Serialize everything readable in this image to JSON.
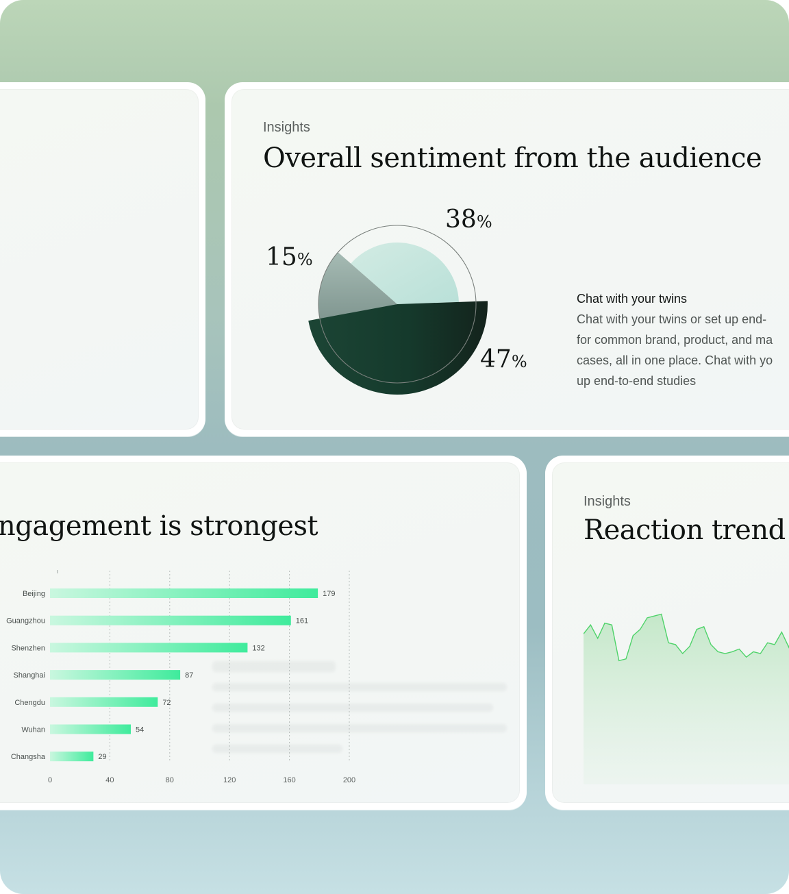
{
  "colors": {
    "accent_green": "#3fe89a",
    "dark_green": "#173b2f",
    "line_green": "#4fd36a"
  },
  "sentiment_card": {
    "eyebrow": "Insights",
    "title": "Overall sentiment from the audience",
    "pie_labels": [
      {
        "value": "15",
        "unit": "%"
      },
      {
        "value": "38",
        "unit": "%"
      },
      {
        "value": "47",
        "unit": "%"
      }
    ],
    "desc_title": "Chat with your twins",
    "desc_body": "Chat with your twins or set up end-\nfor common brand, product, and ma\ncases, all in one place. Chat with yo\nup end-to-end studies"
  },
  "engagement_card": {
    "title": "ngagement is strongest"
  },
  "trend_card": {
    "eyebrow": "Insights",
    "title": "Reaction trend du"
  },
  "chart_data": [
    {
      "type": "pie",
      "categories": [
        "",
        "",
        ""
      ],
      "values": [
        15,
        38,
        47
      ]
    },
    {
      "type": "bar",
      "orientation": "horizontal",
      "categories": [
        "Beijing",
        "Guangzhou",
        "Shenzhen",
        "Shanghai",
        "Chengdu",
        "Wuhan",
        "Changsha"
      ],
      "values": [
        179,
        161,
        132,
        87,
        72,
        54,
        29
      ],
      "xlim": [
        0,
        200
      ],
      "xticks": [
        "0",
        "40",
        "80",
        "120",
        "160",
        "200"
      ],
      "grid": "vertical dashed"
    },
    {
      "type": "area",
      "description_values": [
        50,
        60,
        45,
        62,
        60,
        20,
        22,
        48,
        55,
        68,
        70,
        72,
        40,
        38,
        28,
        36,
        55,
        58,
        38,
        30,
        28,
        30,
        33,
        24,
        30,
        28,
        40,
        38,
        52,
        35,
        60
      ]
    }
  ]
}
